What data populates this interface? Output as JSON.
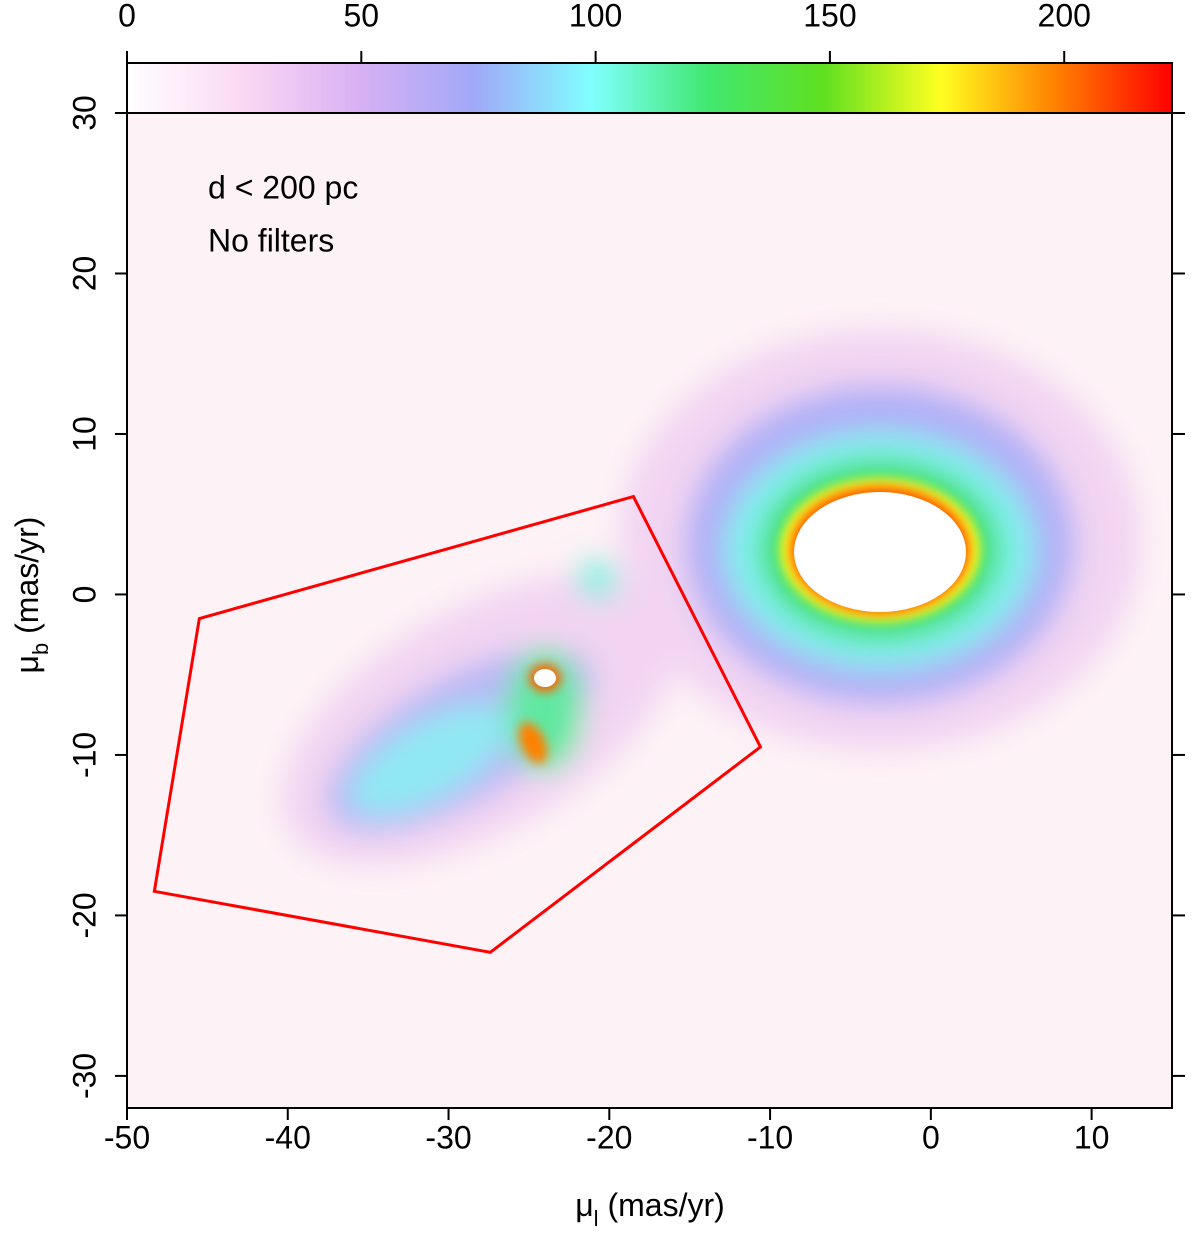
{
  "chart_data": {
    "type": "density",
    "xlabel": [
      "μ",
      "l",
      " (mas/yr)"
    ],
    "ylabel": [
      "μ",
      "b",
      " (mas/yr)"
    ],
    "annotations": [
      "d < 200 pc",
      "No filters"
    ],
    "xlim": [
      -50,
      15
    ],
    "xticks": [
      -50,
      -40,
      -30,
      -20,
      -10,
      0,
      10
    ],
    "ylim": [
      -32,
      30
    ],
    "yticks": [
      -30,
      -20,
      -10,
      0,
      10,
      20,
      30
    ],
    "polygon": {
      "color": "#ff0000",
      "x": [
        -18.5,
        -45.5,
        -48.3,
        -27.4,
        -10.6
      ],
      "y": [
        6.1,
        -1.5,
        -18.5,
        -22.3,
        -9.5
      ]
    },
    "colorbar": {
      "lim": [
        0,
        223
      ],
      "ticks": [
        0,
        50,
        100,
        150,
        200
      ],
      "colors": [
        "#ffffff",
        "#fbd8f4",
        "#d8b0f4",
        "#a0a8f8",
        "#80ffff",
        "#40e870",
        "#60e020",
        "#ffff20",
        "#ff8000",
        "#ff0000"
      ]
    }
  }
}
